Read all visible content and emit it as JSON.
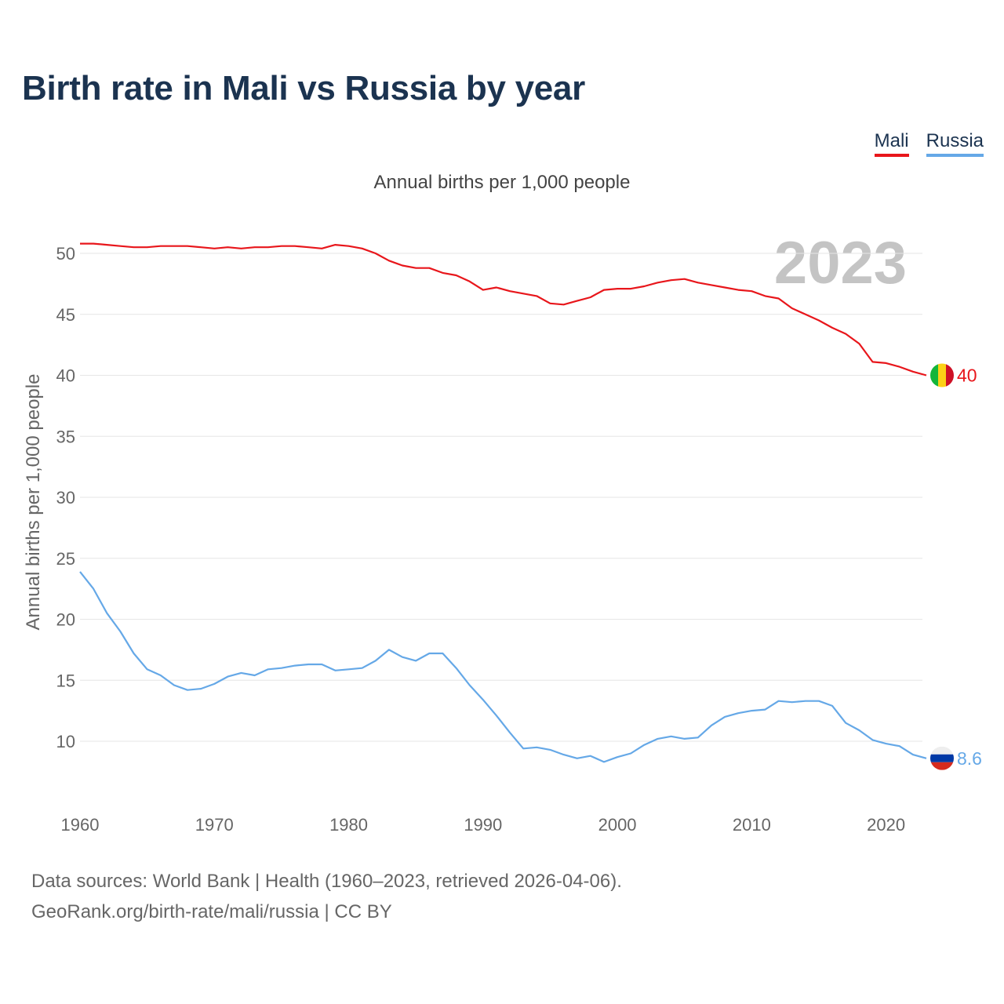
{
  "title": "Birth rate in Mali vs Russia by year",
  "legend": [
    "Mali",
    "Russia"
  ],
  "colors": {
    "Mali": "#e8161b",
    "Russia": "#65a8e7"
  },
  "footer": {
    "line1": "Data sources: World Bank | Health (1960–2023, retrieved 2026-04-06).",
    "line2": "GeoRank.org/birth-rate/mali/russia | CC BY"
  },
  "chart_data": {
    "type": "line",
    "title": "Birth rate in Mali vs Russia by year",
    "subtitle": "Annual births per 1,000 people",
    "ylabel": "Annual births per 1,000 people",
    "xlabel": "",
    "year_label": "2023",
    "ylim": [
      6,
      53
    ],
    "xlim": [
      1960,
      2024
    ],
    "yticks": [
      10,
      15,
      20,
      25,
      30,
      35,
      40,
      45,
      50
    ],
    "xticks": [
      1960,
      1970,
      1980,
      1990,
      2000,
      2010,
      2020
    ],
    "grid": true,
    "legend_position": "top-right",
    "x": [
      1960,
      1961,
      1962,
      1963,
      1964,
      1965,
      1966,
      1967,
      1968,
      1969,
      1970,
      1971,
      1972,
      1973,
      1974,
      1975,
      1976,
      1977,
      1978,
      1979,
      1980,
      1981,
      1982,
      1983,
      1984,
      1985,
      1986,
      1987,
      1988,
      1989,
      1990,
      1991,
      1992,
      1993,
      1994,
      1995,
      1996,
      1997,
      1998,
      1999,
      2000,
      2001,
      2002,
      2003,
      2004,
      2005,
      2006,
      2007,
      2008,
      2009,
      2010,
      2011,
      2012,
      2013,
      2014,
      2015,
      2016,
      2017,
      2018,
      2019,
      2020,
      2021,
      2022,
      2023
    ],
    "series": [
      {
        "name": "Mali",
        "end_label": "40",
        "values": [
          50.8,
          50.8,
          50.7,
          50.6,
          50.5,
          50.5,
          50.6,
          50.6,
          50.6,
          50.5,
          50.4,
          50.5,
          50.4,
          50.5,
          50.5,
          50.6,
          50.6,
          50.5,
          50.4,
          50.7,
          50.6,
          50.4,
          50.0,
          49.4,
          49.0,
          48.8,
          48.8,
          48.4,
          48.2,
          47.7,
          47.0,
          47.2,
          46.9,
          46.7,
          46.5,
          45.9,
          45.8,
          46.1,
          46.4,
          47.0,
          47.1,
          47.1,
          47.3,
          47.6,
          47.8,
          47.9,
          47.6,
          47.4,
          47.2,
          47.0,
          46.9,
          46.5,
          46.3,
          45.5,
          45.0,
          44.5,
          43.9,
          43.4,
          42.6,
          41.1,
          41.0,
          40.7,
          40.3,
          40.0
        ]
      },
      {
        "name": "Russia",
        "end_label": "8.6",
        "values": [
          23.9,
          22.5,
          20.5,
          19.0,
          17.2,
          15.9,
          15.4,
          14.6,
          14.2,
          14.3,
          14.7,
          15.3,
          15.6,
          15.4,
          15.9,
          16.0,
          16.2,
          16.3,
          16.3,
          15.8,
          15.9,
          16.0,
          16.6,
          17.5,
          16.9,
          16.6,
          17.2,
          17.2,
          16.0,
          14.6,
          13.4,
          12.1,
          10.7,
          9.4,
          9.5,
          9.3,
          8.9,
          8.6,
          8.8,
          8.3,
          8.7,
          9.0,
          9.7,
          10.2,
          10.4,
          10.2,
          10.3,
          11.3,
          12.0,
          12.3,
          12.5,
          12.6,
          13.3,
          13.2,
          13.3,
          13.3,
          12.9,
          11.5,
          10.9,
          10.1,
          9.8,
          9.6,
          8.9,
          8.6
        ]
      }
    ]
  }
}
